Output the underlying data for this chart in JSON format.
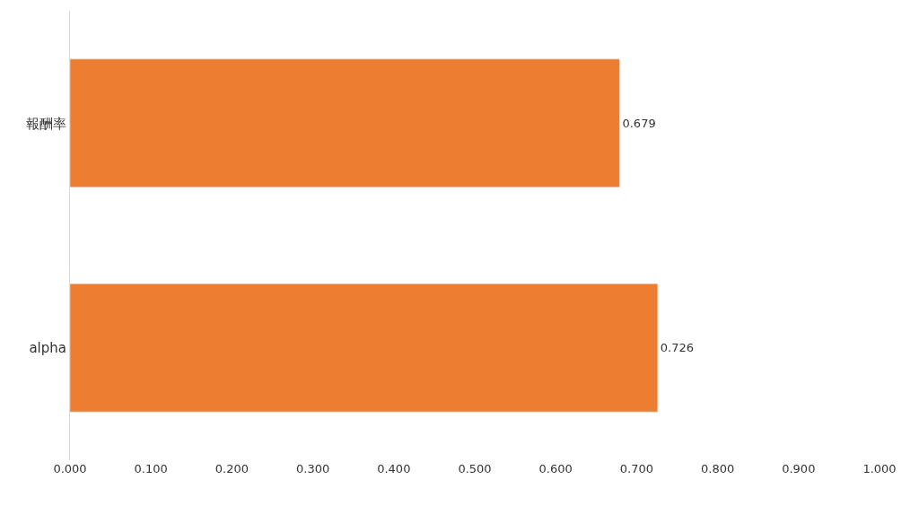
{
  "chart_data": {
    "type": "bar",
    "orientation": "horizontal",
    "categories": [
      "報酬率",
      "alpha"
    ],
    "series": [
      {
        "color": "#ed7d31",
        "values": [
          0.679,
          0.726
        ]
      }
    ],
    "xlim": [
      0,
      1
    ],
    "xticks": [
      {
        "value": 0,
        "label": "0.000"
      },
      {
        "value": 0.1,
        "label": "0.100"
      },
      {
        "value": 0.2,
        "label": "0.200"
      },
      {
        "value": 0.3,
        "label": "0.300"
      },
      {
        "value": 0.4,
        "label": "0.400"
      },
      {
        "value": 0.5,
        "label": "0.500"
      },
      {
        "value": 0.6,
        "label": "0.600"
      },
      {
        "value": 0.7,
        "label": "0.700"
      },
      {
        "value": 0.8,
        "label": "0.800"
      },
      {
        "value": 0.9,
        "label": "0.900"
      },
      {
        "value": 1,
        "label": "1.000"
      }
    ],
    "data_labels": true
  }
}
